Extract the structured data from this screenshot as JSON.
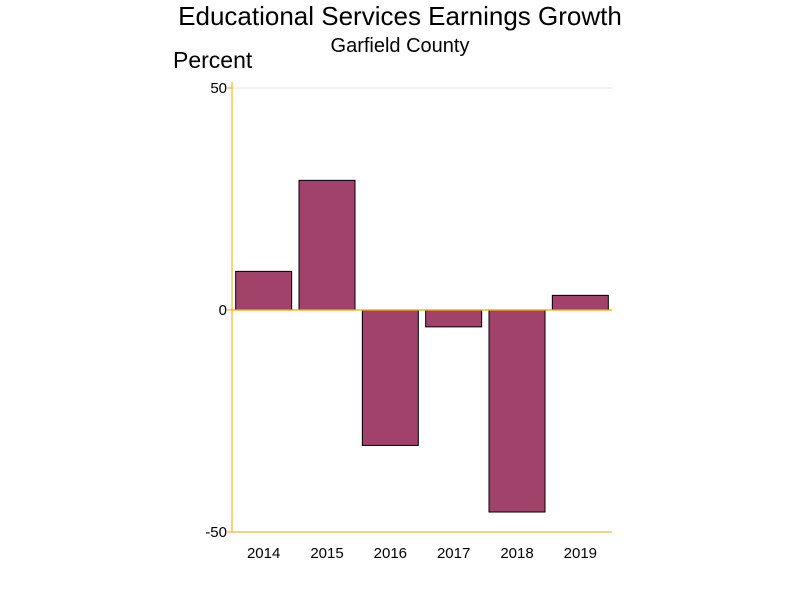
{
  "chart_data": {
    "type": "bar",
    "title": "Educational Services Earnings Growth",
    "subtitle": "Garfield County",
    "ylabel": "Percent",
    "xlabel": "",
    "categories": [
      "2014",
      "2015",
      "2016",
      "2017",
      "2018",
      "2019"
    ],
    "values": [
      8.7,
      29.2,
      -30.5,
      -3.8,
      -45.5,
      3.3
    ],
    "ylim": [
      -50,
      50
    ],
    "yticks": [
      -50,
      0,
      50
    ],
    "grid": false,
    "legend": "none",
    "colors": {
      "bar": "#a0426a",
      "bar_outline": "#000000",
      "axis": "#f2a900",
      "top_gridline": "#e6e6e6"
    }
  }
}
